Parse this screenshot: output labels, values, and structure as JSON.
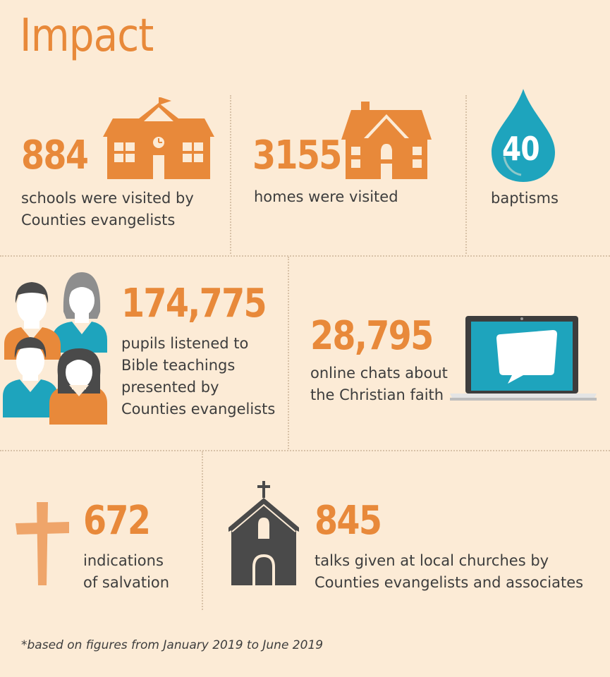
{
  "title": "Impact",
  "colors": {
    "background": "#fcebd6",
    "orange": "#e8893a",
    "teal": "#1ea4bd",
    "text": "#3d3d3d",
    "church": "#4a4a4a"
  },
  "stats": {
    "schools": {
      "value": "884",
      "label_line1": "schools were visited by",
      "label_line2": "Counties evangelists",
      "icon": "school-icon"
    },
    "homes": {
      "value": "3155",
      "label_line1": "homes were visited",
      "icon": "house-icon"
    },
    "baptisms": {
      "value": "40",
      "label_line1": "baptisms",
      "icon": "water-drop-icon"
    },
    "pupils": {
      "value": "174,775",
      "label_line1": "pupils listened to",
      "label_line2": "Bible teachings",
      "label_line3": "presented by",
      "label_line4": "Counties evangelists",
      "icon": "pupils-icon"
    },
    "chats": {
      "value": "28,795",
      "label_line1": "online chats about",
      "label_line2": "the Christian faith",
      "icon": "laptop-chat-icon"
    },
    "salvation": {
      "value": "672",
      "label_line1": "indications",
      "label_line2": "of salvation",
      "icon": "cross-icon"
    },
    "talks": {
      "value": "845",
      "label_line1": "talks given at local churches by",
      "label_line2": "Counties evangelists and associates",
      "icon": "church-icon"
    }
  },
  "footnote": "*based on figures from January 2019 to June 2019"
}
